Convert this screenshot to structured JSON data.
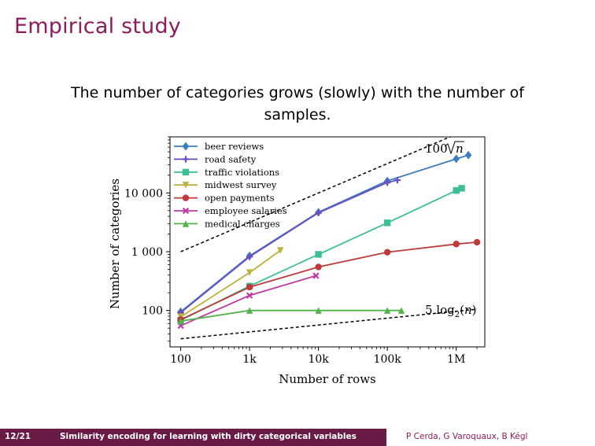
{
  "slide": {
    "title": "Empirical study",
    "subtitle": "The number of categories grows (slowly) with the number of samples."
  },
  "footer": {
    "page": "12/21",
    "title": "Similarity encoding for learning with dirty categorical variables",
    "authors": "P Cerda, G Varoquaux, B Kégl"
  },
  "chart_data": {
    "type": "line",
    "xscale": "log",
    "yscale": "log",
    "xlabel": "Number of rows",
    "ylabel": "Number of categories",
    "xlim": [
      70,
      2600000
    ],
    "ylim": [
      24,
      90000
    ],
    "xticks": [
      {
        "v": 100,
        "label": "100"
      },
      {
        "v": 1000,
        "label": "1k"
      },
      {
        "v": 10000,
        "label": "10k"
      },
      {
        "v": 100000,
        "label": "100k"
      },
      {
        "v": 1000000,
        "label": "1M"
      }
    ],
    "yticks": [
      {
        "v": 100,
        "label": "100"
      },
      {
        "v": 1000,
        "label": "1 000"
      },
      {
        "v": 10000,
        "label": "10 000"
      }
    ],
    "grid": false,
    "legend_position": "top-left",
    "series": [
      {
        "name": "beer reviews",
        "color": "#3a7ebf",
        "marker": "diamond",
        "x": [
          100,
          1000,
          10000,
          100000,
          1000000,
          1500000
        ],
        "y": [
          95,
          850,
          4700,
          16000,
          38000,
          44000
        ]
      },
      {
        "name": "road safety",
        "color": "#6a4fc0",
        "marker": "plus",
        "x": [
          100,
          1000,
          10000,
          100000,
          140000
        ],
        "y": [
          92,
          820,
          4600,
          15000,
          16500
        ]
      },
      {
        "name": "traffic violations",
        "color": "#3cbf94",
        "marker": "square",
        "x": [
          100,
          1000,
          10000,
          100000,
          1000000,
          1200000
        ],
        "y": [
          68,
          260,
          900,
          3100,
          11000,
          12000
        ]
      },
      {
        "name": "midwest survey",
        "color": "#bcb23c",
        "marker": "triangle-down",
        "x": [
          100,
          1000,
          2800
        ],
        "y": [
          78,
          440,
          1050
        ]
      },
      {
        "name": "open payments",
        "color": "#bf3a3a",
        "marker": "circle",
        "x": [
          100,
          1000,
          10000,
          100000,
          1000000,
          2000000
        ],
        "y": [
          70,
          250,
          550,
          980,
          1350,
          1450
        ]
      },
      {
        "name": "employee salaries",
        "color": "#bf3aa5",
        "marker": "x",
        "x": [
          100,
          1000,
          9200
        ],
        "y": [
          55,
          180,
          390
        ]
      },
      {
        "name": "medical charges",
        "color": "#54b24a",
        "marker": "triangle-up",
        "x": [
          100,
          1000,
          10000,
          100000,
          160000
        ],
        "y": [
          66,
          100,
          100,
          100,
          100
        ]
      }
    ],
    "reference_lines": [
      {
        "label": "100√n",
        "formula": "100*sqrt(n)",
        "style": "dashed",
        "x": [
          100,
          2000000
        ],
        "y": [
          1000,
          141000
        ]
      },
      {
        "label": "5 log2(n)",
        "formula": "5*log2(n)",
        "style": "dashed",
        "x": [
          100,
          2000000
        ],
        "y": [
          33,
          105
        ]
      }
    ]
  }
}
